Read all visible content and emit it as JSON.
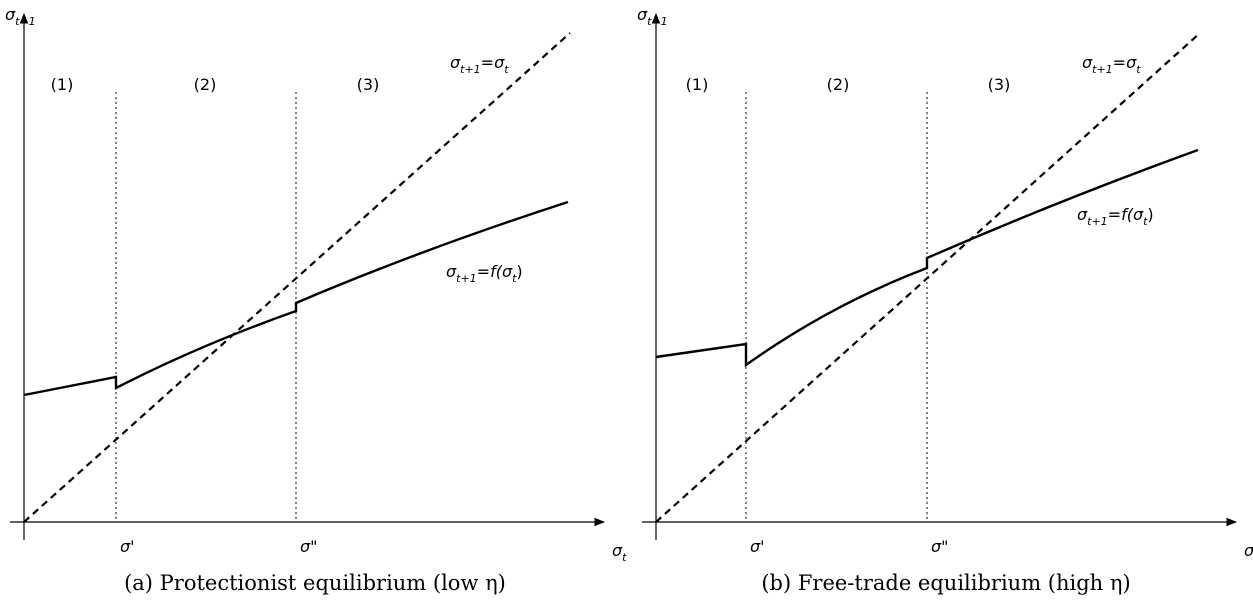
{
  "panels": [
    {
      "y_axis_label": [
        {
          "text": "σ"
        },
        {
          "text": "t+1",
          "sub": true
        }
      ],
      "x_axis_label": [
        {
          "text": "σ"
        },
        {
          "text": "t",
          "sub": true
        }
      ],
      "regions": [
        "(1)",
        "(2)",
        "(3)"
      ],
      "thresholds": [
        "σ'",
        "σ\""
      ],
      "diagonal_label": [
        {
          "text": "σ"
        },
        {
          "text": "t+1",
          "sub": true
        },
        {
          "text": "=σ"
        },
        {
          "text": "t",
          "sub": true
        }
      ],
      "curve_label": [
        {
          "text": "σ"
        },
        {
          "text": "t+1",
          "sub": true
        },
        {
          "text": "=f(σ"
        },
        {
          "text": "t",
          "sub": true
        },
        {
          "text": ")"
        }
      ],
      "caption": "(a) Protectionist equilibrium (low η)"
    },
    {
      "y_axis_label": [
        {
          "text": "σ"
        },
        {
          "text": "t+1",
          "sub": true
        }
      ],
      "x_axis_label": [
        {
          "text": "σ"
        },
        {
          "text": "t",
          "sub": true
        }
      ],
      "regions": [
        "(1)",
        "(2)",
        "(3)"
      ],
      "thresholds": [
        "σ'",
        "σ\""
      ],
      "diagonal_label": [
        {
          "text": "σ"
        },
        {
          "text": "t+1",
          "sub": true
        },
        {
          "text": "=σ"
        },
        {
          "text": "t",
          "sub": true
        }
      ],
      "curve_label": [
        {
          "text": "σ"
        },
        {
          "text": "t+1",
          "sub": true
        },
        {
          "text": "=f(σ"
        },
        {
          "text": "t",
          "sub": true
        },
        {
          "text": ")"
        }
      ],
      "caption": "(b) Free-trade equilibrium (high η)"
    }
  ]
}
